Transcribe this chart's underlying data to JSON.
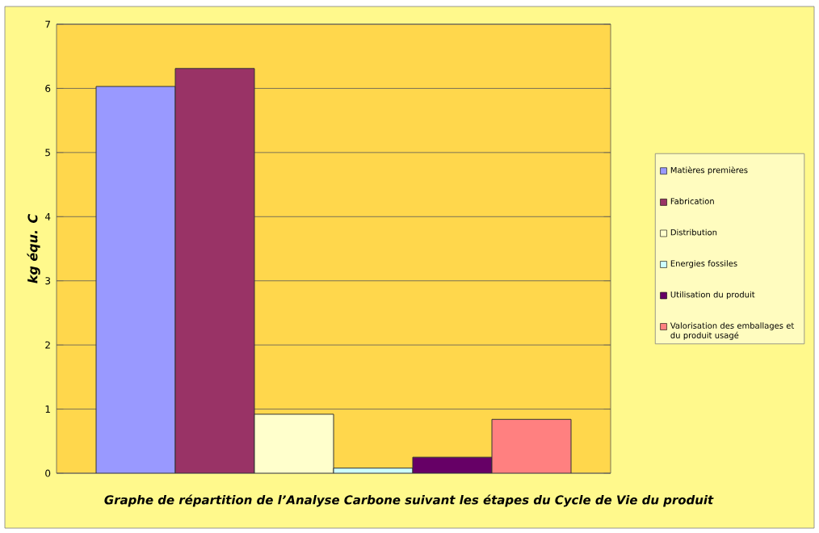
{
  "chart_data": {
    "type": "bar",
    "title": "Graphe de répartition de l’Analyse Carbone suivant les étapes du Cycle de Vie du produit",
    "ylabel": "kg équ. C",
    "categories": [
      null
    ],
    "series": [
      {
        "name": "Matières premières",
        "color": "#9999ff",
        "values": [
          6.03
        ]
      },
      {
        "name": "Fabrication",
        "color": "#993366",
        "values": [
          6.31
        ]
      },
      {
        "name": "Distribution",
        "color": "#ffffcc",
        "values": [
          0.92
        ]
      },
      {
        "name": "Energies fossiles",
        "color": "#ccffff",
        "values": [
          0.08
        ]
      },
      {
        "name": "Utilisation du produit",
        "color": "#660066",
        "values": [
          0.25
        ]
      },
      {
        "name": "Valorisation des emballages et du produit usagé",
        "color": "#ff8080",
        "values": [
          0.84
        ]
      }
    ],
    "ylim": [
      0,
      7
    ],
    "yticks": [
      0,
      1,
      2,
      3,
      4,
      5,
      6,
      7
    ],
    "grid": "y",
    "legend": "right"
  }
}
